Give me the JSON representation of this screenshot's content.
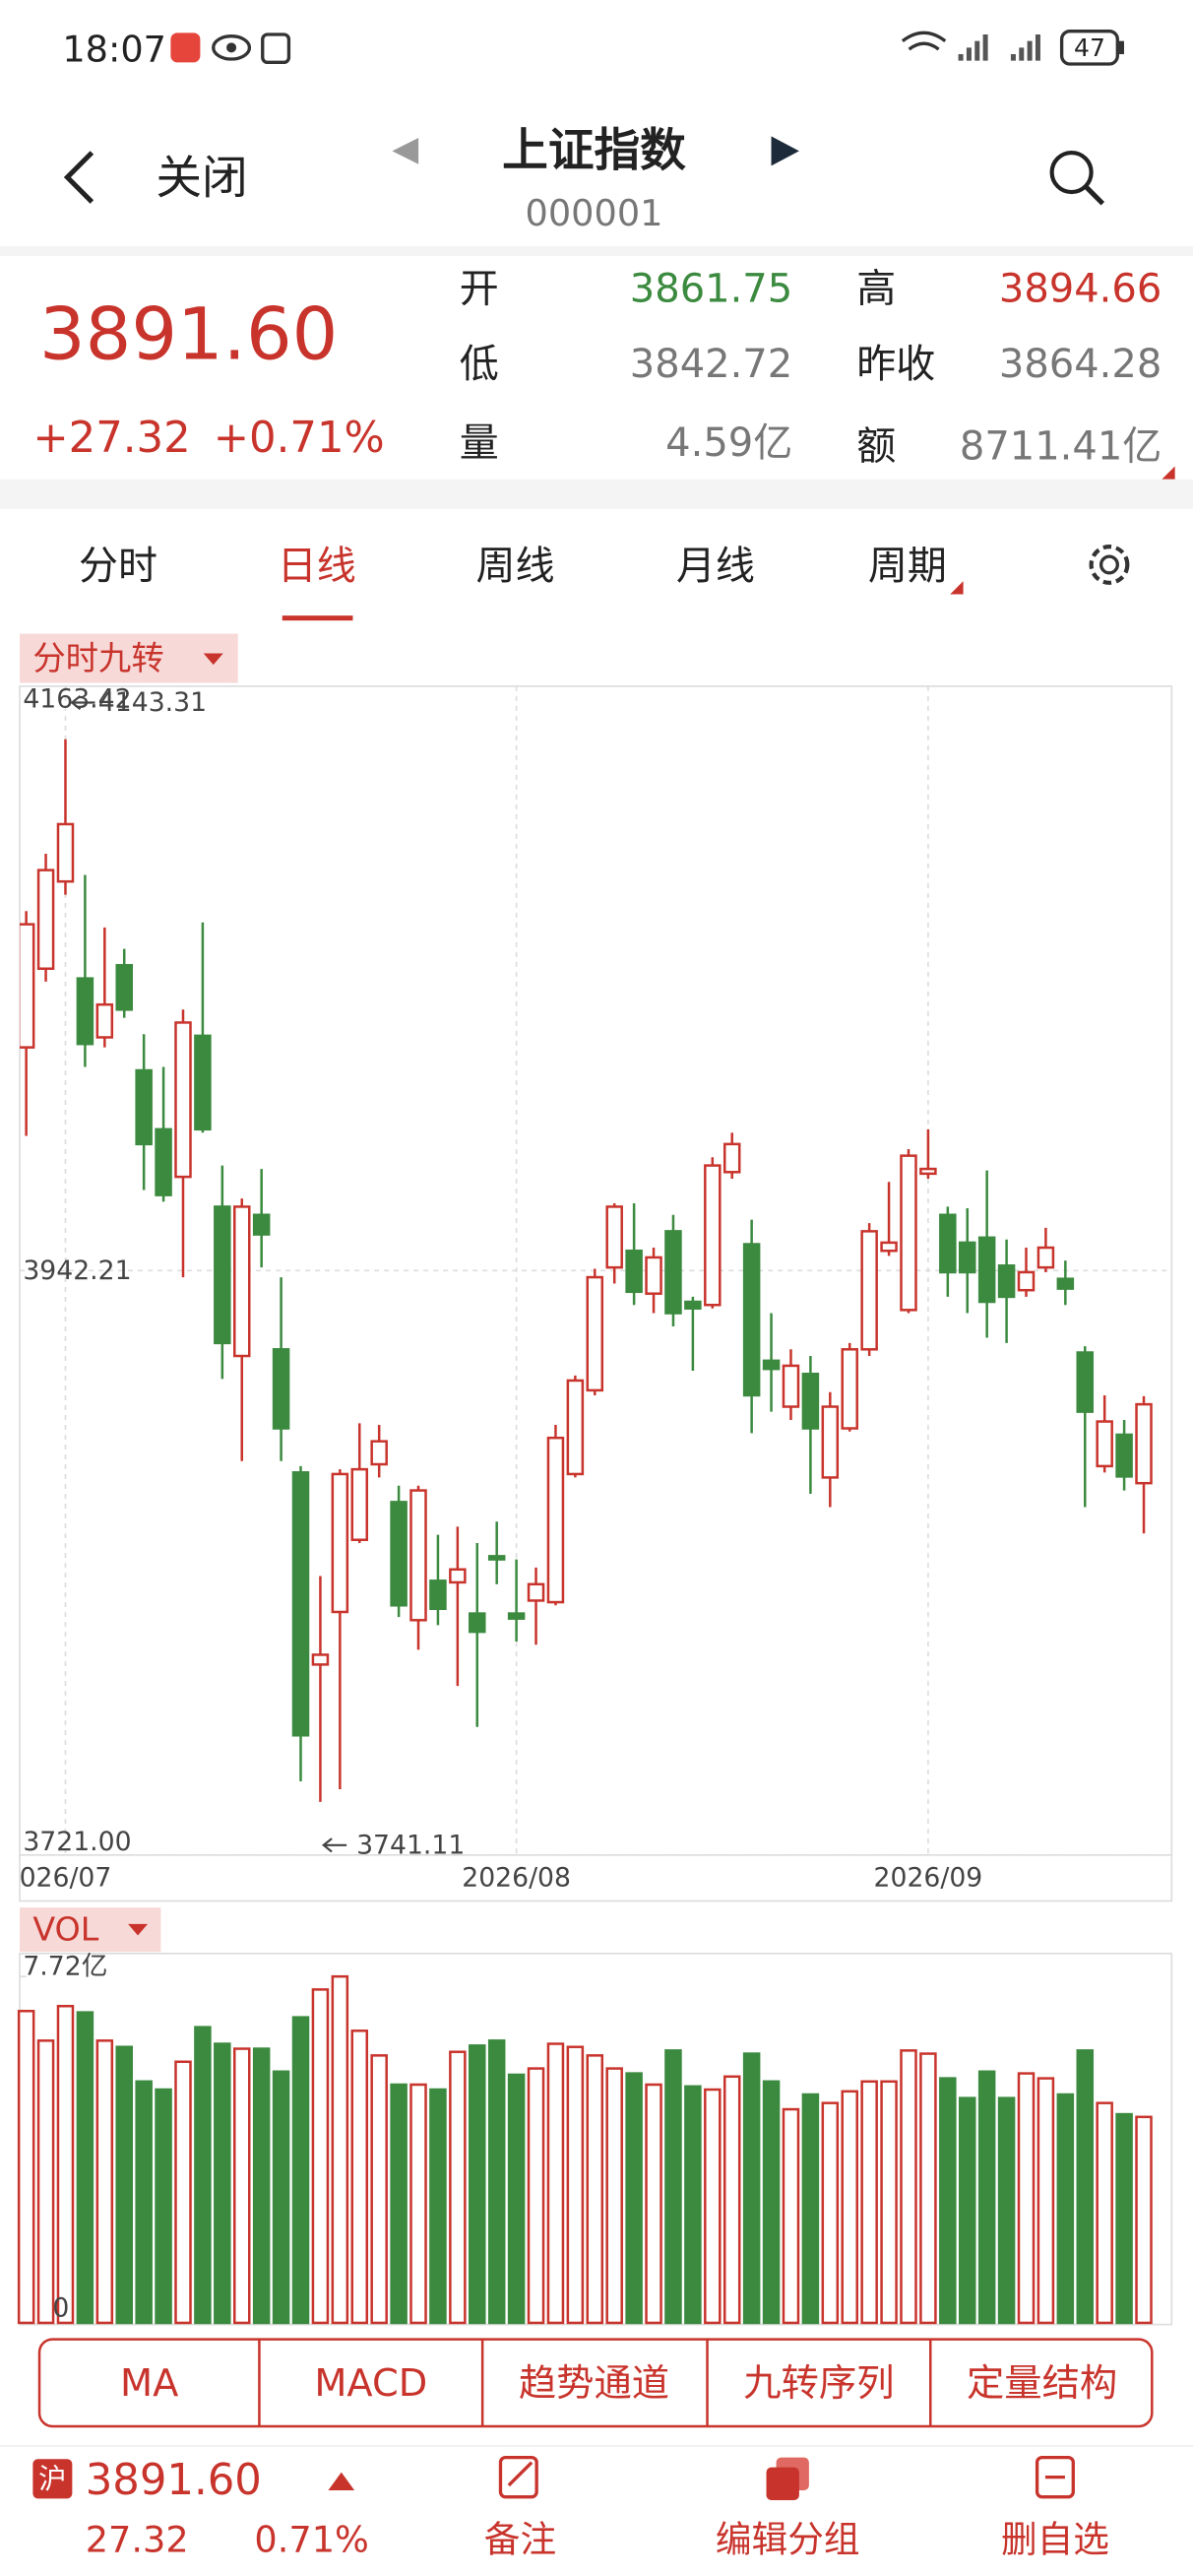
{
  "status_bar": {
    "time": "18:07",
    "battery": "47"
  },
  "header": {
    "back": "关闭",
    "title": "上证指数",
    "code": "000001"
  },
  "quote": {
    "price": "3891.60",
    "change": "+27.32",
    "change_pct": "+0.71%",
    "fields": [
      {
        "label": "开",
        "value": "3861.75"
      },
      {
        "label": "高",
        "value": "3894.66"
      },
      {
        "label": "低",
        "value": "3842.72"
      },
      {
        "label": "昨收",
        "value": "3864.28"
      },
      {
        "label": "量",
        "value": "4.59亿"
      },
      {
        "label": "额",
        "value": "8711.41亿"
      }
    ]
  },
  "tabs": [
    "分时",
    "日线",
    "周线",
    "月线",
    "周期"
  ],
  "indicator_label": "分时九转",
  "chart_data": [
    {
      "type": "candlestick",
      "categories": [
        null,
        null,
        "026/07",
        null,
        null,
        null,
        null,
        null,
        null,
        null,
        null,
        null,
        null,
        null,
        null,
        null,
        null,
        null,
        null,
        null,
        null,
        null,
        null,
        null,
        null,
        "2026/08",
        null,
        null,
        null,
        null,
        null,
        null,
        null,
        null,
        null,
        null,
        null,
        null,
        null,
        null,
        null,
        null,
        null,
        null,
        null,
        null,
        "2026/09",
        null,
        null,
        null,
        null,
        null,
        null,
        null,
        null,
        null,
        null,
        null
      ],
      "open": [
        4026.7,
        4056.5,
        4089.5,
        4052.8,
        4030.5,
        4057.8,
        4018.0,
        3995.7,
        3977.7,
        4031.1,
        3966.4,
        3909.9,
        3963.3,
        3912.4,
        3865.8,
        3793.1,
        3813.0,
        3840.3,
        3868.9,
        3854.6,
        3809.9,
        3824.8,
        3824.2,
        3812.4,
        3834.1,
        3812.4,
        3817.3,
        3816.7,
        3865.2,
        3896.9,
        3943.4,
        3949.7,
        3933.5,
        3957.1,
        3930.4,
        3929.2,
        3979.5,
        3952.2,
        3908.1,
        3890.7,
        3903.1,
        3863.9,
        3882.5,
        3912.4,
        3949.7,
        3927.3,
        3978.9,
        3963.3,
        3952.8,
        3954.7,
        3944.1,
        3934.8,
        3943.4,
        3939.1,
        3911.2,
        3868.2,
        3880.1,
        3861.75
      ],
      "high": [
        4078.3,
        4100.0,
        4143.31,
        4092.0,
        4072.1,
        4064.0,
        4031.7,
        4019.3,
        4041.0,
        4074.0,
        3982.0,
        3969.5,
        3980.7,
        3939.7,
        3868.2,
        3826.6,
        3867.0,
        3884.4,
        3883.8,
        3860.8,
        3860.8,
        3842.2,
        3845.3,
        3839.1,
        3847.2,
        3832.9,
        3829.8,
        3883.8,
        3902.5,
        3942.9,
        3967.7,
        3967.7,
        3950.9,
        3963.3,
        3932.3,
        3985.1,
        3994.4,
        3961.5,
        3926.1,
        3912.4,
        3909.9,
        3896.2,
        3914.8,
        3960.2,
        3975.8,
        3988.2,
        3995.7,
        3966.4,
        3965.8,
        3980.1,
        3954.0,
        3950.9,
        3958.4,
        3946.0,
        3913.6,
        3895.0,
        3885.7,
        3894.66
      ],
      "low": [
        3993.2,
        4051.6,
        4084.5,
        4019.3,
        4026.7,
        4037.9,
        3972.7,
        3968.3,
        3939.7,
        3994.4,
        3901.2,
        3870.1,
        3943.4,
        3870.1,
        3748.9,
        3741.11,
        3745.9,
        3839.1,
        3863.9,
        3811.1,
        3798.7,
        3808.0,
        3785.0,
        3769.5,
        3823.5,
        3801.8,
        3800.6,
        3815.5,
        3863.9,
        3895.0,
        3937.3,
        3929.2,
        3926.1,
        3921.1,
        3904.3,
        3927.9,
        3977.0,
        3880.7,
        3888.8,
        3885.7,
        3857.7,
        3852.7,
        3881.3,
        3909.9,
        3947.8,
        3926.1,
        3977.0,
        3932.3,
        3926.1,
        3916.8,
        3914.8,
        3932.3,
        3941.6,
        3929.2,
        3852.7,
        3865.8,
        3859.0,
        3842.72
      ],
      "close": [
        4073.3,
        4093.8,
        4111.2,
        4028.0,
        4042.9,
        4041.0,
        3990.1,
        3970.8,
        4036.1,
        3995.7,
        3914.8,
        3966.4,
        3955.9,
        3882.5,
        3766.3,
        3796.8,
        3865.2,
        3867.0,
        3877.6,
        3815.5,
        3859.0,
        3814.2,
        3829.1,
        3805.5,
        3832.9,
        3810.5,
        3823.5,
        3878.9,
        3900.6,
        3939.7,
        3966.4,
        3934.2,
        3947.2,
        3926.1,
        3927.9,
        3982.0,
        3990.1,
        3895.0,
        3905.0,
        3906.2,
        3882.5,
        3890.7,
        3912.4,
        3957.1,
        3952.8,
        3985.7,
        3980.7,
        3941.6,
        3941.6,
        3930.4,
        3932.3,
        3941.6,
        3950.9,
        3935.4,
        3888.8,
        3885.1,
        3864.28,
        3891.6
      ],
      "high_label": "4143.31",
      "low_label": "3741.11",
      "ylim": [
        3721.0,
        4163.42
      ],
      "yticks": [
        4163.42,
        3942.21,
        {
          "value": 3721.0,
          "label": "3721.00"
        }
      ],
      "up_color": "#c8342c",
      "down_color": "#3b8a3f",
      "grid": true
    },
    {
      "type": "bar",
      "label": "VOL",
      "values": [
        6.95,
        6.29,
        7.06,
        6.92,
        6.29,
        6.15,
        5.38,
        5.2,
        5.82,
        6.59,
        6.22,
        6.11,
        6.11,
        5.6,
        6.81,
        7.43,
        7.72,
        6.51,
        5.96,
        5.31,
        5.31,
        5.2,
        6.04,
        6.18,
        6.29,
        5.53,
        5.67,
        6.22,
        6.15,
        5.96,
        5.67,
        5.56,
        5.31,
        6.07,
        5.27,
        5.2,
        5.49,
        6.0,
        5.38,
        4.76,
        5.09,
        4.9,
        5.16,
        5.38,
        5.38,
        6.07,
        6.0,
        5.45,
        5.01,
        5.6,
        5.01,
        5.56,
        5.45,
        5.09,
        6.07,
        4.9,
        4.65,
        4.59
      ],
      "ylim": [
        0,
        7.72
      ],
      "yticks": [
        0,
        {
          "value": 7.72,
          "label": "7.72亿"
        }
      ]
    }
  ],
  "tools": [
    "MA",
    "MACD",
    "趋势通道",
    "九转序列",
    "定量结构"
  ],
  "footer": {
    "badge": "沪",
    "price": "3891.60",
    "change": "27.32",
    "change_pct": "0.71%",
    "actions": [
      "备注",
      "编辑分组",
      "删自选"
    ]
  }
}
